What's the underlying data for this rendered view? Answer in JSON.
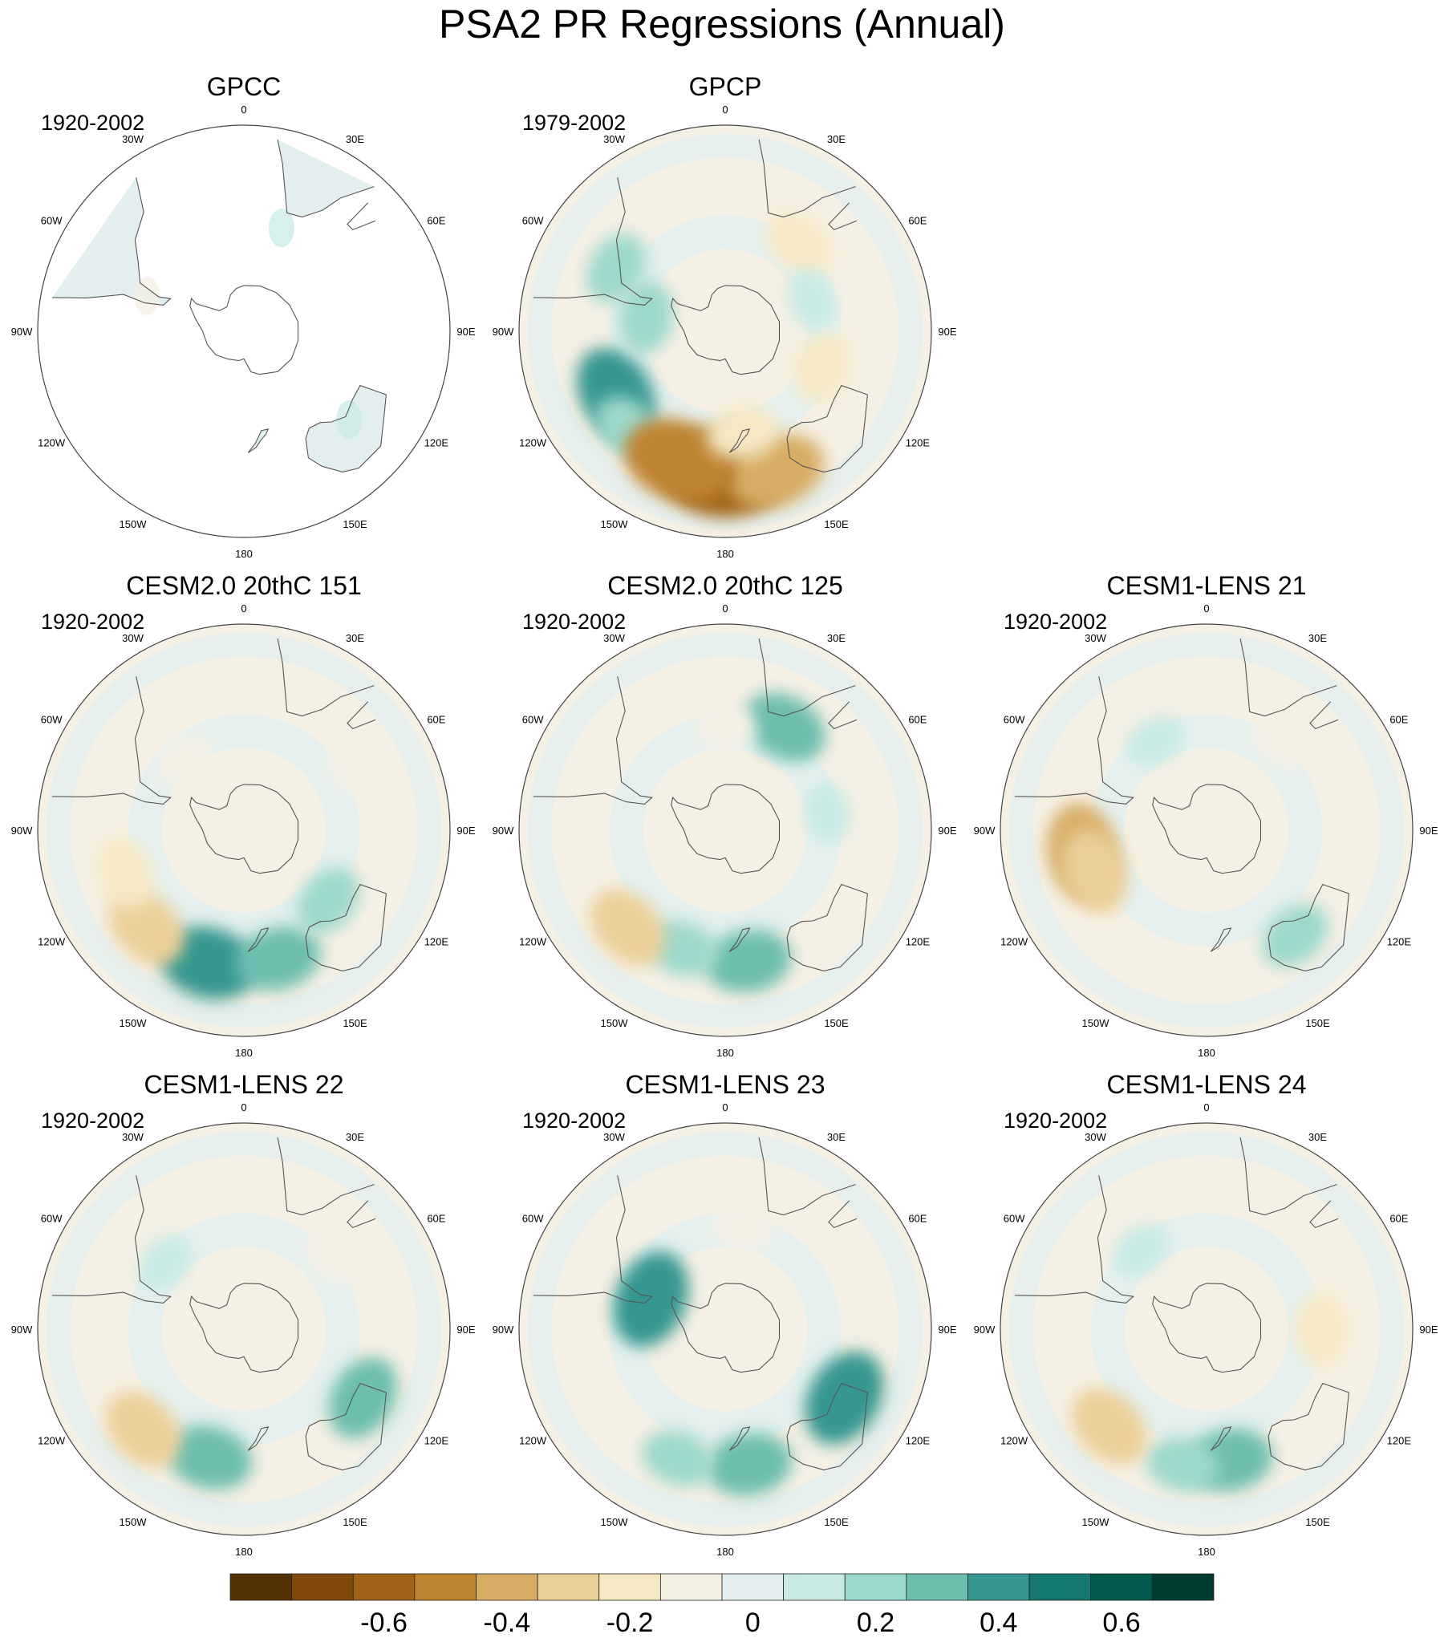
{
  "title": "PSA2 PR Regressions (Annual)",
  "longitude_labels": [
    "0",
    "30E",
    "60E",
    "90E",
    "120E",
    "150E",
    "180",
    "150W",
    "120W",
    "90W",
    "60W",
    "30W"
  ],
  "panels": [
    {
      "id": "gpcc",
      "title": "GPCC",
      "period": "1920-2002",
      "coverage": "land-only",
      "blobs": [
        {
          "lon": 20,
          "lat": -42,
          "v": 0.1
        },
        {
          "lon": -70,
          "lat": -45,
          "v": -0.1
        },
        {
          "lon": 130,
          "lat": -30,
          "v": 0.1
        }
      ]
    },
    {
      "id": "gpcp",
      "title": "GPCP",
      "period": "1979-2002",
      "coverage": "global",
      "blobs": [
        {
          "lon": -120,
          "lat": -35,
          "v": 0.4
        },
        {
          "lon": -135,
          "lat": -30,
          "v": 0.2
        },
        {
          "lon": 180,
          "lat": -28,
          "v": -0.6
        },
        {
          "lon": 160,
          "lat": -25,
          "v": -0.4
        },
        {
          "lon": -160,
          "lat": -30,
          "v": -0.5
        },
        {
          "lon": 170,
          "lat": -45,
          "v": -0.2
        },
        {
          "lon": 110,
          "lat": -45,
          "v": -0.2
        },
        {
          "lon": 40,
          "lat": -40,
          "v": -0.2
        },
        {
          "lon": -60,
          "lat": -35,
          "v": 0.2
        },
        {
          "lon": -80,
          "lat": -55,
          "v": 0.2
        },
        {
          "lon": 70,
          "lat": -50,
          "v": 0.1
        }
      ]
    },
    {
      "id": "cesm2-151",
      "title": "CESM2.0 20thC 151",
      "period": "1920-2002",
      "coverage": "global",
      "blobs": [
        {
          "lon": -165,
          "lat": -30,
          "v": 0.4
        },
        {
          "lon": 165,
          "lat": -32,
          "v": 0.3
        },
        {
          "lon": -135,
          "lat": -30,
          "v": -0.3
        },
        {
          "lon": -110,
          "lat": -35,
          "v": -0.2
        },
        {
          "lon": 130,
          "lat": -42,
          "v": 0.2
        },
        {
          "lon": 60,
          "lat": -35,
          "v": -0.1
        },
        {
          "lon": -40,
          "lat": -50,
          "v": -0.1
        }
      ]
    },
    {
      "id": "cesm2-125",
      "title": "CESM2.0 20thC 125",
      "period": "1920-2002",
      "coverage": "global",
      "blobs": [
        {
          "lon": 170,
          "lat": -32,
          "v": 0.3
        },
        {
          "lon": -160,
          "lat": -35,
          "v": 0.2
        },
        {
          "lon": 30,
          "lat": -38,
          "v": 0.3
        },
        {
          "lon": -135,
          "lat": -30,
          "v": -0.3
        },
        {
          "lon": 0,
          "lat": -45,
          "v": -0.1
        },
        {
          "lon": 80,
          "lat": -45,
          "v": 0.1
        }
      ]
    },
    {
      "id": "lens-21",
      "title": "CESM1-LENS 21",
      "period": "1920-2002",
      "coverage": "global",
      "blobs": [
        {
          "lon": -100,
          "lat": -35,
          "v": -0.4
        },
        {
          "lon": -110,
          "lat": -38,
          "v": -0.3
        },
        {
          "lon": 140,
          "lat": -30,
          "v": 0.2
        },
        {
          "lon": 40,
          "lat": -40,
          "v": -0.1
        },
        {
          "lon": -30,
          "lat": -45,
          "v": 0.1
        }
      ]
    },
    {
      "id": "lens-22",
      "title": "CESM1-LENS 22",
      "period": "1920-2002",
      "coverage": "global",
      "blobs": [
        {
          "lon": -165,
          "lat": -32,
          "v": 0.3
        },
        {
          "lon": 120,
          "lat": -30,
          "v": 0.3
        },
        {
          "lon": -135,
          "lat": -28,
          "v": -0.3
        },
        {
          "lon": -50,
          "lat": -45,
          "v": 0.1
        },
        {
          "lon": 50,
          "lat": -40,
          "v": -0.1
        }
      ]
    },
    {
      "id": "lens-23",
      "title": "CESM1-LENS 23",
      "period": "1920-2002",
      "coverage": "global",
      "blobs": [
        {
          "lon": 170,
          "lat": -30,
          "v": 0.3
        },
        {
          "lon": 120,
          "lat": -30,
          "v": 0.4
        },
        {
          "lon": -160,
          "lat": -30,
          "v": 0.2
        },
        {
          "lon": -68,
          "lat": -55,
          "v": 0.4
        },
        {
          "lon": 10,
          "lat": -45,
          "v": -0.1
        }
      ]
    },
    {
      "id": "lens-24",
      "title": "CESM1-LENS 24",
      "period": "1920-2002",
      "coverage": "global",
      "blobs": [
        {
          "lon": 170,
          "lat": -32,
          "v": 0.3
        },
        {
          "lon": -170,
          "lat": -30,
          "v": 0.2
        },
        {
          "lon": -135,
          "lat": -30,
          "v": -0.3
        },
        {
          "lon": 90,
          "lat": -40,
          "v": -0.2
        },
        {
          "lon": -40,
          "lat": -45,
          "v": 0.1
        }
      ]
    }
  ],
  "colorbar": {
    "colors": [
      "#543005",
      "#7f4a0b",
      "#a16318",
      "#bf8430",
      "#d7ad65",
      "#ebcf98",
      "#f6e8c3",
      "#f5f0e4",
      "#e3efee",
      "#c7eae5",
      "#9dd8cc",
      "#6cbeaf",
      "#35978f",
      "#14786e",
      "#01594b",
      "#003c30"
    ],
    "tick_labels": [
      "-0.6",
      "-0.4",
      "-0.2",
      "0",
      "0.2",
      "0.4",
      "0.6"
    ]
  }
}
